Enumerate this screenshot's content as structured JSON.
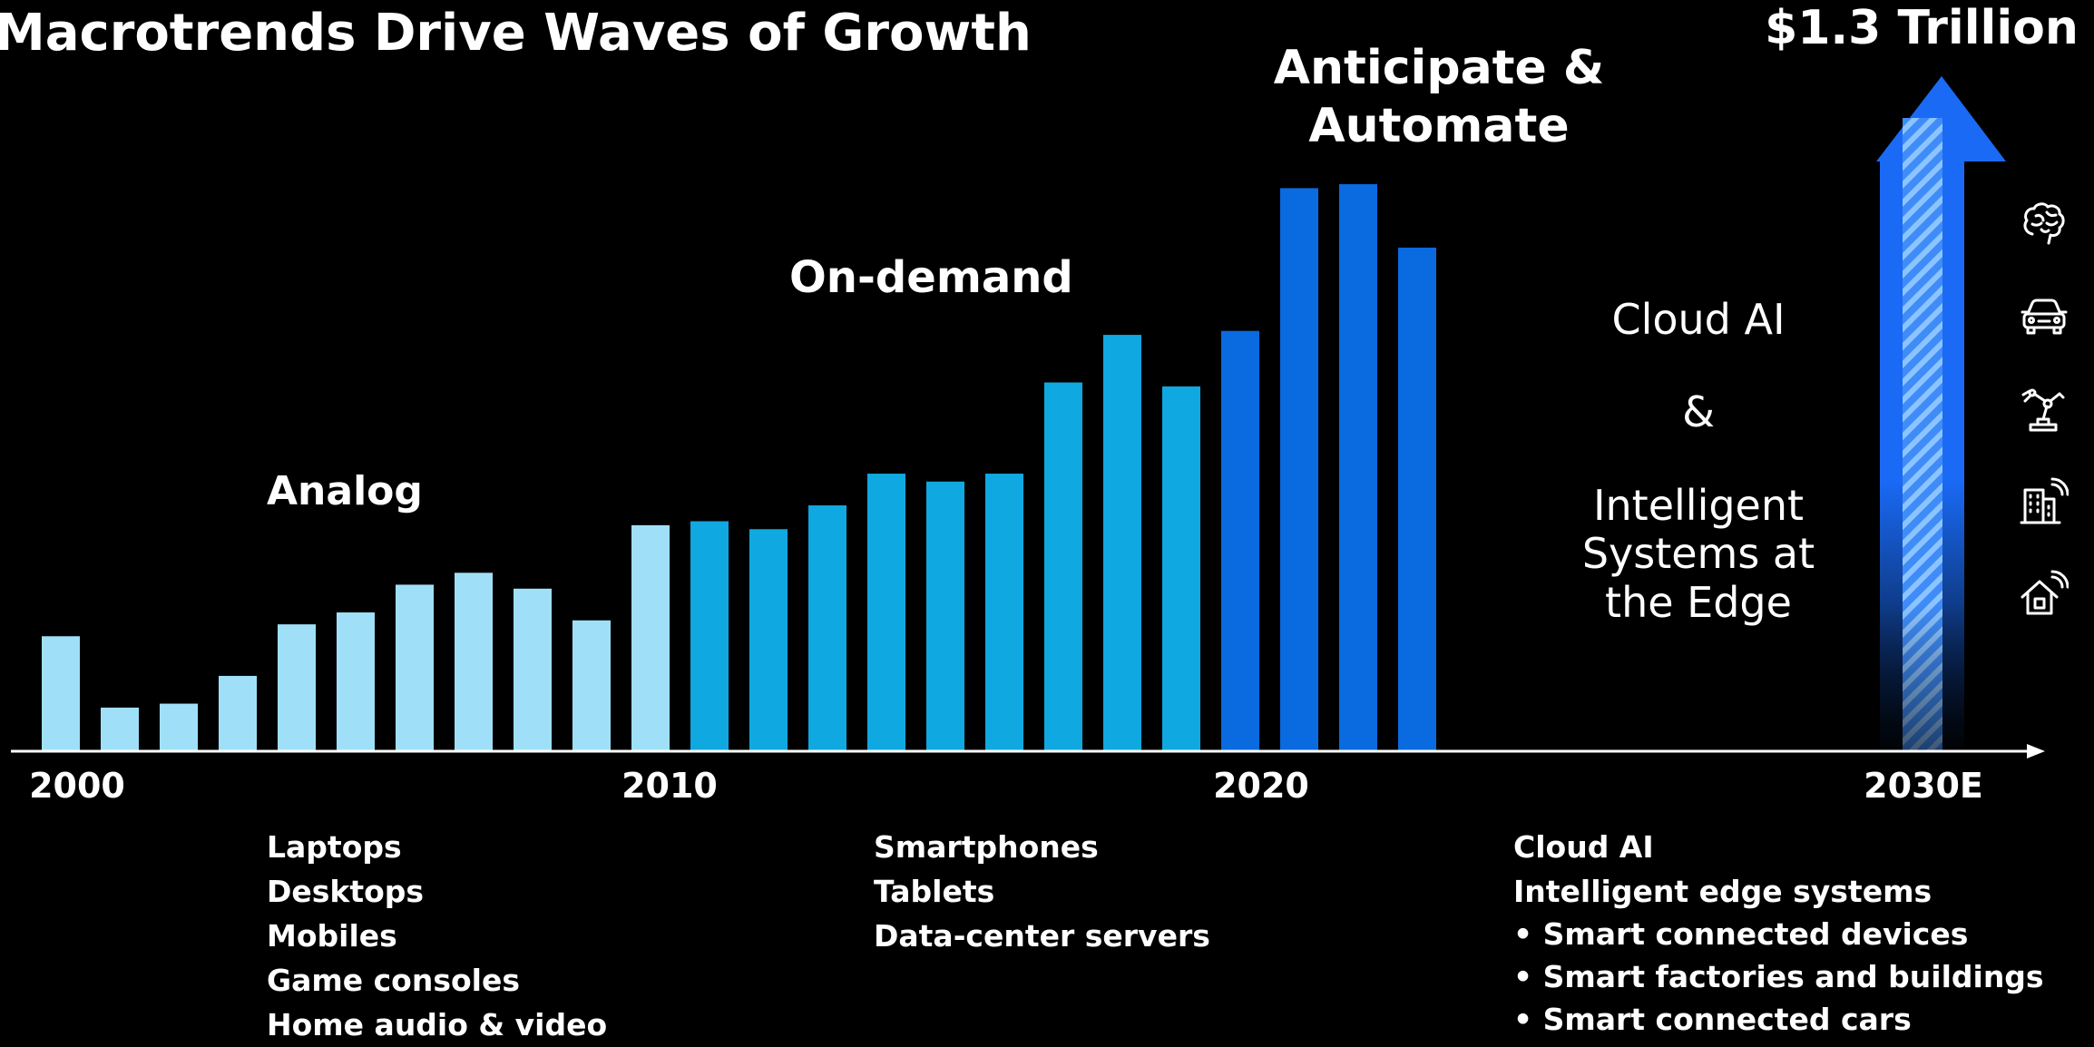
{
  "title": "Macrotrends Drive Waves of Growth",
  "colors": {
    "background": "#000000",
    "analog": "#9fe0f8",
    "ondemand": "#10a8e0",
    "automate": "#0a6ae0",
    "arrow": "#1a6af5",
    "axis": "#ffffff"
  },
  "chart_data": {
    "type": "bar",
    "title": "Macrotrends Drive Waves of Growth",
    "x_tick_labels": [
      "2000",
      "2010",
      "2020",
      "2030E"
    ],
    "categories": [
      "2000",
      "2001",
      "2002",
      "2003",
      "2004",
      "2005",
      "2006",
      "2007",
      "2008",
      "2009",
      "2010",
      "2011",
      "2012",
      "2013",
      "2014",
      "2015",
      "2016",
      "2017",
      "2018",
      "2019",
      "2020",
      "2021",
      "2022",
      "2023",
      "2030E"
    ],
    "values": [
      29,
      11,
      12,
      19,
      32,
      35,
      42,
      45,
      41,
      33,
      57,
      58,
      56,
      62,
      70,
      68,
      70,
      93,
      105,
      92,
      106,
      142,
      143,
      127,
      1300
    ],
    "series": [
      {
        "name": "Analog",
        "range": [
          "2000",
          "2010"
        ]
      },
      {
        "name": "On-demand",
        "range": [
          "2011",
          "2019"
        ]
      },
      {
        "name": "Anticipate & Automate",
        "range": [
          "2020",
          "2023"
        ]
      }
    ],
    "grid": false,
    "legend": "none"
  },
  "era_labels": {
    "analog": "Analog",
    "ondemand": "On-demand",
    "automate_line1": "Anticipate &",
    "automate_line2": "Automate"
  },
  "forecast": {
    "value_label": "$1.3 Trillion",
    "line1": "Cloud AI",
    "line2": "&",
    "line3": "Intelligent",
    "line4": "Systems at",
    "line5": "the Edge"
  },
  "icons": [
    "brain-icon",
    "car-icon",
    "robot-arm-icon",
    "smart-building-icon",
    "smart-home-icon"
  ],
  "lists": {
    "analog": [
      "Laptops",
      "Desktops",
      "Mobiles",
      "Game consoles",
      "Home audio & video"
    ],
    "ondemand": [
      "Smartphones",
      "Tablets",
      "Data-center servers"
    ],
    "automate_heads": [
      "Cloud AI",
      "Intelligent edge systems"
    ],
    "automate_bullets": [
      "• Smart connected devices",
      "• Smart factories and buildings",
      "• Smart connected cars"
    ]
  }
}
